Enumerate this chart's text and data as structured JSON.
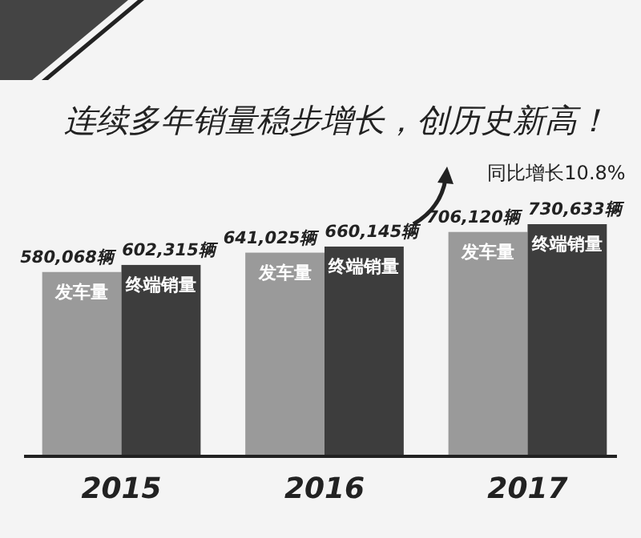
{
  "chart_data": {
    "type": "bar",
    "title": "连续多年销量稳步增长，创历史新高！",
    "categories": [
      "2015",
      "2016",
      "2017"
    ],
    "series": [
      {
        "name": "发车量",
        "color": "#9a9a9a",
        "values": [
          580068,
          641025,
          706120
        ],
        "value_labels": [
          "580,068辆",
          "641,025辆",
          "706,120辆"
        ]
      },
      {
        "name": "终端销量",
        "color": "#3d3d3d",
        "values": [
          602315,
          660145,
          730633
        ],
        "value_labels": [
          "602,315辆",
          "660,145辆",
          "730,633辆"
        ]
      }
    ],
    "tick_labels": "x",
    "annotations": [
      "同比增长10.8%"
    ]
  }
}
